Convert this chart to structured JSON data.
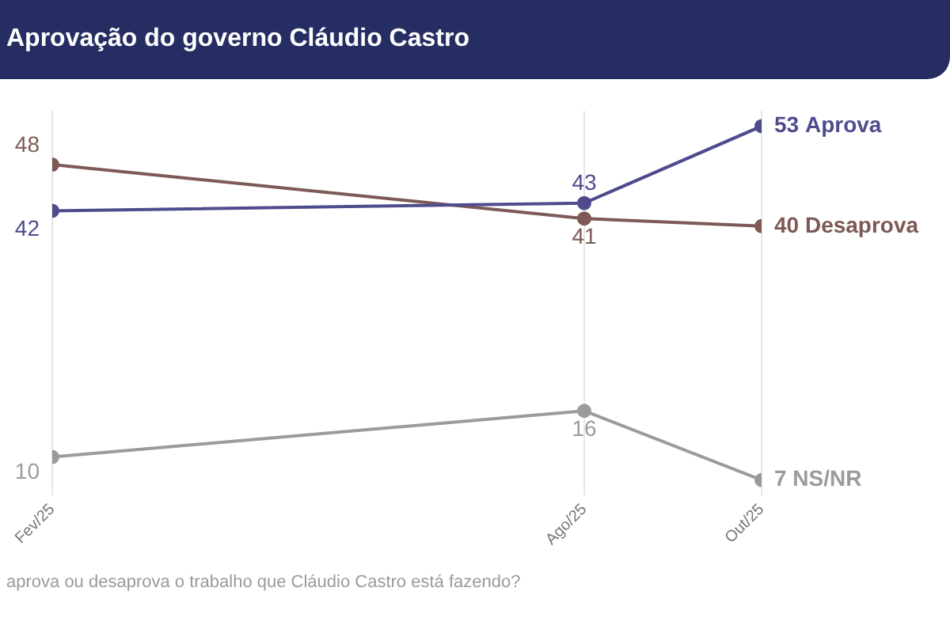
{
  "chart_data": {
    "type": "line",
    "title": "Aprovação do governo Cláudio Castro",
    "x": [
      "2025-02",
      "2025-08",
      "2025-10"
    ],
    "xlim": [
      "2025-02",
      "2025-10"
    ],
    "xticks": [
      {
        "value": "2025-02",
        "label": "Fev/25"
      },
      {
        "value": "2025-08",
        "label": "Ago/25"
      },
      {
        "value": "2025-10",
        "label": "Out/25"
      }
    ],
    "series": [
      {
        "name": "Aprova",
        "color": "#4f4c8e",
        "values": [
          42,
          43,
          53
        ]
      },
      {
        "name": "Desaprova",
        "color": "#7d5a55",
        "values": [
          48,
          41,
          40
        ]
      },
      {
        "name": "NS/NR",
        "color": "#9b9b9b",
        "values": [
          10,
          16,
          7
        ]
      }
    ],
    "data_labels": true,
    "grid": "x",
    "legend": false,
    "marker": "circle",
    "line_style": "solid",
    "tick_labels": "x",
    "annotations": [
      "aprova ou desaprova o trabalho que Cláudio Castro está fazendo?"
    ]
  }
}
